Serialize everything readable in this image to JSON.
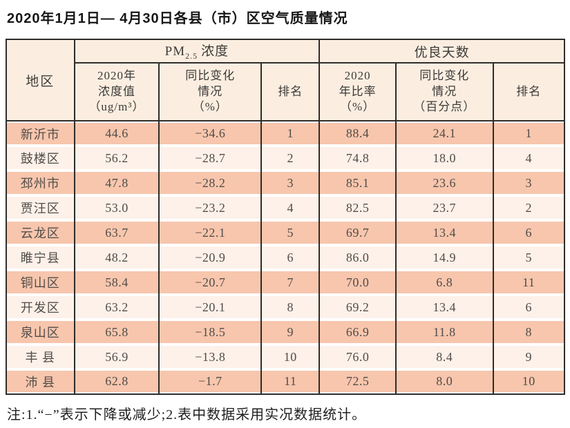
{
  "title": "2020年1月1日— 4月30日各县（市）区空气质量情况",
  "colors": {
    "band_odd": "#f7c6ad",
    "band_even": "#fdf1e9",
    "header_bg": "#fbeee1",
    "border": "#2f2c29"
  },
  "table": {
    "region_header": "地区",
    "groups": [
      {
        "prefix": "PM",
        "sub": "2.5",
        "suffix": "浓度"
      },
      {
        "label": "优良天数"
      }
    ],
    "subheaders": [
      "2020年\n浓度值\n（ug/m³）",
      "同比变化\n情况\n（%）",
      "排名",
      "2020\n年比率\n（%）",
      "同比变化\n情况\n（百分点）",
      "排名"
    ],
    "rows": [
      {
        "region": "新沂市",
        "pm_value": "44.6",
        "pm_change": "−34.6",
        "pm_rank": "1",
        "good_ratio": "88.4",
        "good_change": "24.1",
        "good_rank": "1"
      },
      {
        "region": "鼓楼区",
        "pm_value": "56.2",
        "pm_change": "−28.7",
        "pm_rank": "2",
        "good_ratio": "74.8",
        "good_change": "18.0",
        "good_rank": "4"
      },
      {
        "region": "邳州市",
        "pm_value": "47.8",
        "pm_change": "−28.2",
        "pm_rank": "3",
        "good_ratio": "85.1",
        "good_change": "23.6",
        "good_rank": "3"
      },
      {
        "region": "贾汪区",
        "pm_value": "53.0",
        "pm_change": "−23.2",
        "pm_rank": "4",
        "good_ratio": "82.5",
        "good_change": "23.7",
        "good_rank": "2"
      },
      {
        "region": "云龙区",
        "pm_value": "63.7",
        "pm_change": "−22.1",
        "pm_rank": "5",
        "good_ratio": "69.7",
        "good_change": "13.4",
        "good_rank": "6"
      },
      {
        "region": "睢宁县",
        "pm_value": "48.2",
        "pm_change": "−20.9",
        "pm_rank": "6",
        "good_ratio": "86.0",
        "good_change": "14.9",
        "good_rank": "5"
      },
      {
        "region": "铜山区",
        "pm_value": "58.4",
        "pm_change": "−20.7",
        "pm_rank": "7",
        "good_ratio": "70.0",
        "good_change": "6.8",
        "good_rank": "11"
      },
      {
        "region": "开发区",
        "pm_value": "63.2",
        "pm_change": "−20.1",
        "pm_rank": "8",
        "good_ratio": "69.2",
        "good_change": "13.4",
        "good_rank": "6"
      },
      {
        "region": "泉山区",
        "pm_value": "65.8",
        "pm_change": "−18.5",
        "pm_rank": "9",
        "good_ratio": "66.9",
        "good_change": "11.8",
        "good_rank": "8"
      },
      {
        "region": "丰 县",
        "pm_value": "56.9",
        "pm_change": "−13.8",
        "pm_rank": "10",
        "good_ratio": "76.0",
        "good_change": "8.4",
        "good_rank": "9"
      },
      {
        "region": "沛 县",
        "pm_value": "62.8",
        "pm_change": "−1.7",
        "pm_rank": "11",
        "good_ratio": "72.5",
        "good_change": "8.0",
        "good_rank": "10"
      }
    ]
  },
  "note": "注:1.“−”表示下降或减少;2.表中数据采用实况数据统计。"
}
